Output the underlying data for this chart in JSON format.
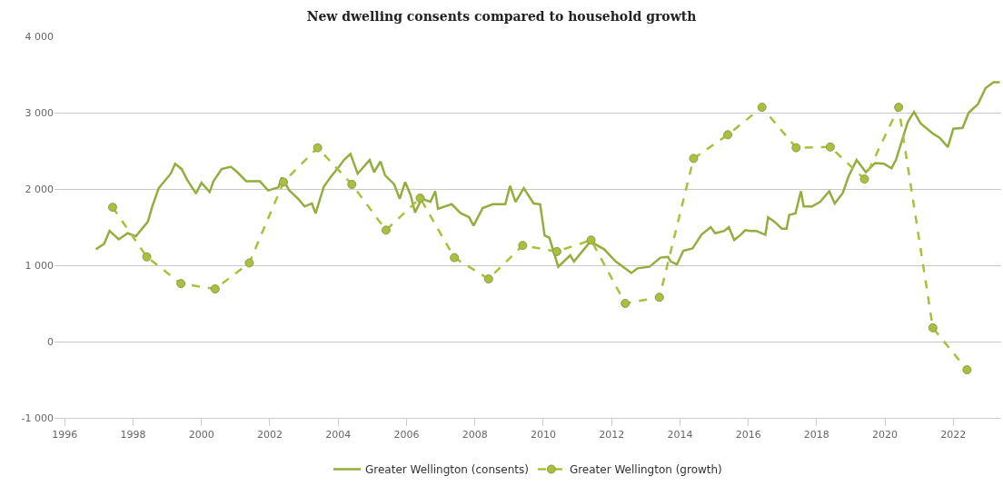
{
  "chart_data": {
    "type": "line",
    "title": "New dwelling consents compared to household growth",
    "xlim": [
      1995.7,
      2023.4
    ],
    "xticks": [
      1996,
      1998,
      2000,
      2002,
      2004,
      2006,
      2008,
      2010,
      2012,
      2014,
      2016,
      2018,
      2020,
      2022
    ],
    "ylim": [
      -1000,
      4000
    ],
    "yticks": [
      {
        "value": -1000,
        "label": "-1 000"
      },
      0,
      {
        "value": 1000,
        "label": "1 000"
      },
      {
        "value": 2000,
        "label": "2 000"
      },
      {
        "value": 3000,
        "label": "3 000"
      },
      {
        "value": 4000,
        "label": "4 000"
      }
    ],
    "grid": "y",
    "legend": "bottom",
    "series": [
      {
        "name": "Greater Wellington (consents)",
        "color": "#93ad3e",
        "marker": "none",
        "line_style": "solid",
        "x": [
          1996.91,
          1997.15,
          1997.31,
          1997.58,
          1997.84,
          1998.08,
          1998.43,
          1998.56,
          1998.75,
          1999.1,
          1999.23,
          1999.42,
          1999.58,
          1999.84,
          2000.0,
          2000.24,
          2000.35,
          2000.59,
          2000.86,
          2001.05,
          2001.31,
          2001.71,
          2001.95,
          2002.25,
          2002.35,
          2002.57,
          2002.83,
          2003.02,
          2003.23,
          2003.34,
          2003.58,
          2003.77,
          2004.04,
          2004.17,
          2004.36,
          2004.57,
          2004.92,
          2005.05,
          2005.24,
          2005.37,
          2005.64,
          2005.8,
          2005.96,
          2006.12,
          2006.25,
          2006.44,
          2006.7,
          2006.84,
          2006.92,
          2007.32,
          2007.59,
          2007.83,
          2007.96,
          2008.23,
          2008.52,
          2008.89,
          2009.03,
          2009.19,
          2009.43,
          2009.72,
          2009.91,
          2010.04,
          2010.18,
          2010.44,
          2010.79,
          2010.9,
          2011.38,
          2011.78,
          2012.12,
          2012.58,
          2012.76,
          2013.11,
          2013.43,
          2013.65,
          2013.73,
          2013.91,
          2014.1,
          2014.37,
          2014.63,
          2014.9,
          2015.03,
          2015.3,
          2015.43,
          2015.59,
          2015.78,
          2015.91,
          2016.05,
          2016.23,
          2016.5,
          2016.58,
          2016.77,
          2016.98,
          2017.12,
          2017.2,
          2017.38,
          2017.54,
          2017.62,
          2017.86,
          2018.1,
          2018.37,
          2018.53,
          2018.77,
          2018.93,
          2019.17,
          2019.44,
          2019.71,
          2019.97,
          2020.19,
          2020.32,
          2020.53,
          2020.67,
          2020.85,
          2021.04,
          2021.2,
          2021.39,
          2021.6,
          2021.84,
          2022.0,
          2022.27,
          2022.45,
          2022.72,
          2022.94,
          2023.18,
          2023.36
        ],
        "values": [
          1210,
          1280,
          1450,
          1340,
          1420,
          1380,
          1570,
          1770,
          2010,
          2200,
          2330,
          2260,
          2120,
          1940,
          2080,
          1960,
          2100,
          2260,
          2290,
          2220,
          2100,
          2100,
          1980,
          2020,
          2150,
          1980,
          1870,
          1770,
          1810,
          1680,
          2030,
          2150,
          2300,
          2380,
          2460,
          2200,
          2380,
          2220,
          2360,
          2180,
          2060,
          1870,
          2090,
          1920,
          1690,
          1870,
          1830,
          1970,
          1740,
          1800,
          1680,
          1630,
          1520,
          1750,
          1800,
          1800,
          2040,
          1830,
          2010,
          1810,
          1800,
          1390,
          1360,
          980,
          1130,
          1050,
          1310,
          1210,
          1050,
          900,
          960,
          980,
          1100,
          1110,
          1050,
          1010,
          1190,
          1220,
          1400,
          1500,
          1420,
          1450,
          1500,
          1330,
          1400,
          1460,
          1450,
          1450,
          1400,
          1630,
          1570,
          1480,
          1480,
          1660,
          1680,
          1970,
          1770,
          1770,
          1830,
          1970,
          1810,
          1950,
          2160,
          2380,
          2220,
          2340,
          2330,
          2270,
          2380,
          2680,
          2880,
          3010,
          2860,
          2800,
          2730,
          2670,
          2550,
          2790,
          2800,
          3000,
          3110,
          3320,
          3400,
          3400
        ]
      },
      {
        "name": "Greater Wellington (growth)",
        "color": "#a9c03c",
        "marker": "circle",
        "line_style": "dashed",
        "x": [
          1997.4,
          1998.4,
          1999.4,
          2000.4,
          2001.4,
          2002.4,
          2003.4,
          2004.4,
          2005.4,
          2006.4,
          2007.4,
          2008.4,
          2009.4,
          2010.4,
          2011.4,
          2012.4,
          2013.4,
          2014.4,
          2015.4,
          2016.4,
          2017.4,
          2018.4,
          2019.4,
          2020.4,
          2021.4,
          2022.4
        ],
        "values": [
          1760,
          1110,
          760,
          690,
          1030,
          2090,
          2540,
          2060,
          1460,
          1880,
          1100,
          820,
          1260,
          1180,
          1330,
          500,
          580,
          2400,
          2710,
          3070,
          2540,
          2550,
          2130,
          3070,
          180,
          -370
        ]
      }
    ]
  }
}
